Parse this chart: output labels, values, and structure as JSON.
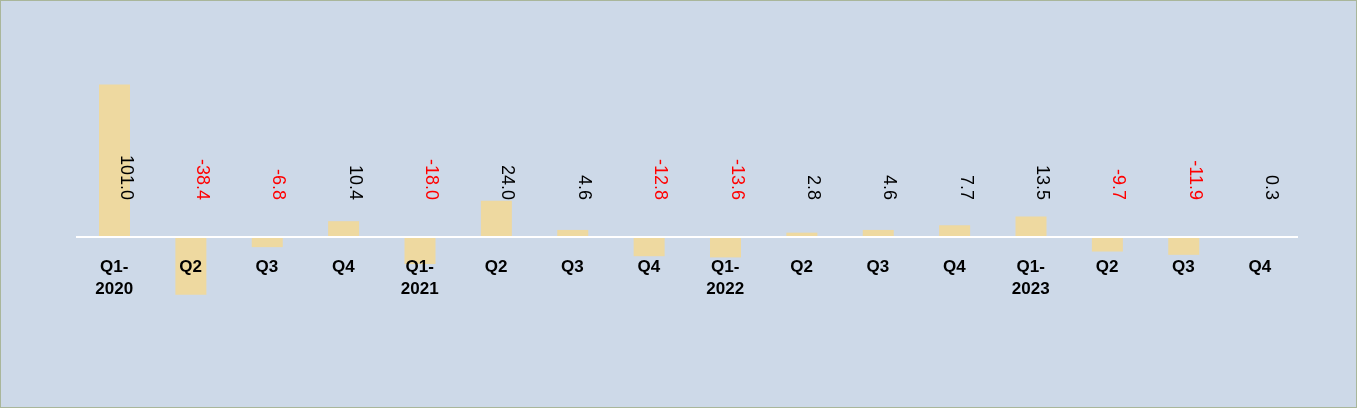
{
  "chart_data": {
    "type": "bar",
    "categories": [
      "Q1-\n2020",
      "Q2",
      "Q3",
      "Q4",
      "Q1-\n2021",
      "Q2",
      "Q3",
      "Q4",
      "Q1-\n2022",
      "Q2",
      "Q3",
      "Q4",
      "Q1-\n2023",
      "Q2",
      "Q3",
      "Q4"
    ],
    "values": [
      101.0,
      -38.4,
      -6.8,
      10.4,
      -18.0,
      24.0,
      4.6,
      -12.8,
      -13.6,
      2.8,
      4.6,
      7.7,
      13.5,
      -9.7,
      -11.9,
      0.3
    ],
    "value_labels": [
      "101.0",
      "-38.4",
      "-6.8",
      "10.4",
      "-18.0",
      "24.0",
      "4.6",
      "-12.8",
      "-13.6",
      "2.8",
      "4.6",
      "7.7",
      "13.5",
      "-9.7",
      "-11.9",
      "0.3"
    ],
    "color": "#eed9a0"
  }
}
